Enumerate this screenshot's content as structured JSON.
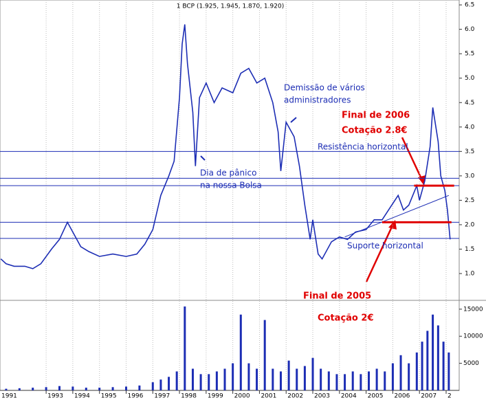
{
  "chart_data": [
    {
      "type": "line",
      "title": "1 BCP (1.925, 1.945, 1.870, 1.920)",
      "x": [
        1991.3,
        1991.5,
        1991.8,
        1992.2,
        1992.5,
        1992.8,
        1993.2,
        1993.5,
        1993.8,
        1994.0,
        1994.3,
        1994.6,
        1995.0,
        1995.5,
        1996.0,
        1996.4,
        1996.7,
        1997.0,
        1997.3,
        1997.6,
        1997.8,
        1998.0,
        1998.1,
        1998.2,
        1998.3,
        1998.5,
        1998.6,
        1998.75,
        1999.0,
        1999.3,
        1999.6,
        2000.0,
        2000.3,
        2000.6,
        2000.9,
        2001.2,
        2001.5,
        2001.7,
        2001.8,
        2002.0,
        2002.3,
        2002.5,
        2002.7,
        2002.9,
        2003.0,
        2003.2,
        2003.35,
        2003.7,
        2004.0,
        2004.3,
        2004.6,
        2005.0,
        2005.3,
        2005.6,
        2005.9,
        2006.2,
        2006.4,
        2006.6,
        2006.9,
        2007.0,
        2007.2,
        2007.4,
        2007.5,
        2007.7,
        2007.8,
        2007.95,
        2008.05,
        2008.15
      ],
      "values": [
        1.3,
        1.2,
        1.15,
        1.15,
        1.1,
        1.2,
        1.5,
        1.7,
        2.05,
        1.85,
        1.55,
        1.45,
        1.35,
        1.4,
        1.35,
        1.4,
        1.6,
        1.9,
        2.6,
        3.0,
        3.3,
        4.6,
        5.7,
        6.1,
        5.3,
        4.3,
        3.2,
        4.6,
        4.9,
        4.5,
        4.8,
        4.7,
        5.1,
        5.2,
        4.9,
        5.0,
        4.5,
        3.9,
        3.1,
        4.1,
        3.8,
        3.2,
        2.4,
        1.7,
        2.1,
        1.4,
        1.3,
        1.65,
        1.75,
        1.7,
        1.85,
        1.9,
        2.1,
        2.1,
        2.35,
        2.6,
        2.3,
        2.4,
        2.8,
        2.5,
        2.9,
        3.6,
        4.4,
        3.7,
        3.0,
        2.7,
        2.3,
        1.7
      ],
      "color": "#1c2db4",
      "xlim": [
        1991.27,
        2008.49
      ],
      "xticks": [
        {
          "value": 1991,
          "label": "1991"
        },
        1993,
        1994,
        1995,
        1996,
        1997,
        1998,
        1999,
        2000,
        2001,
        2002,
        2003,
        2004,
        2005,
        2006,
        2007,
        {
          "value": 2008,
          "label": "2"
        }
      ],
      "ylim": [
        0.55,
        6.6
      ],
      "yticks": [
        {
          "value": 1,
          "label": "1.0"
        },
        1.5,
        {
          "value": 2,
          "label": "2.0"
        },
        2.5,
        {
          "value": 3,
          "label": "3.0"
        },
        3.5,
        {
          "value": 4,
          "label": "4.0"
        },
        4.5,
        {
          "value": 5,
          "label": "5.0"
        },
        5.5,
        {
          "value": 6,
          "label": "6.0"
        },
        6.5
      ],
      "reference_lines": [
        3.5,
        2.95,
        2.8,
        2.05,
        1.72
      ],
      "reference_color": "#1c2db4",
      "highlight_lines": [
        {
          "y": 2.8,
          "x": [
            2006.8,
            2008.3
          ]
        },
        {
          "y": 2.05,
          "x": [
            2005.6,
            2008.2
          ]
        }
      ],
      "highlight_color": "#e00000",
      "trend_line": {
        "x": [
          2004.2,
          2008.1
        ],
        "y": [
          1.75,
          2.6
        ]
      },
      "annotations": [
        "Demissão de vários",
        "administradores",
        "Dia de pânico",
        "na nossa Bolsa",
        "Final de 2006",
        "Cotação 2.8€",
        "Resistência horizontal",
        "Suporte horizontal",
        "Final de 2005",
        "Cotação 2€"
      ]
    },
    {
      "type": "bar",
      "x": [
        1991.5,
        1992,
        1992.5,
        1993,
        1993.5,
        1994,
        1994.5,
        1995,
        1995.5,
        1996,
        1996.5,
        1997,
        1997.3,
        1997.6,
        1997.9,
        1998.2,
        1998.5,
        1998.8,
        1999.1,
        1999.4,
        1999.7,
        2000,
        2000.3,
        2000.6,
        2000.9,
        2001.2,
        2001.5,
        2001.8,
        2002.1,
        2002.4,
        2002.7,
        2003,
        2003.3,
        2003.6,
        2003.9,
        2004.2,
        2004.5,
        2004.8,
        2005.1,
        2005.4,
        2005.7,
        2006,
        2006.3,
        2006.6,
        2006.9,
        2007.1,
        2007.3,
        2007.5,
        2007.7,
        2007.9,
        2008.1
      ],
      "values": [
        300,
        400,
        500,
        600,
        800,
        700,
        500,
        500,
        600,
        700,
        900,
        1500,
        2000,
        2500,
        3500,
        15500,
        4000,
        3000,
        3000,
        3500,
        4000,
        5000,
        14000,
        5000,
        4000,
        13000,
        4000,
        3500,
        5500,
        4000,
        4500,
        6000,
        4000,
        3500,
        3000,
        3000,
        3500,
        3000,
        3500,
        4000,
        3500,
        5000,
        6500,
        5000,
        7000,
        9000,
        11000,
        14000,
        12000,
        9000,
        7000
      ],
      "color": "#1c2db4",
      "ylim": [
        0,
        16250
      ],
      "yticks": [
        5000,
        10000,
        15000
      ]
    }
  ]
}
